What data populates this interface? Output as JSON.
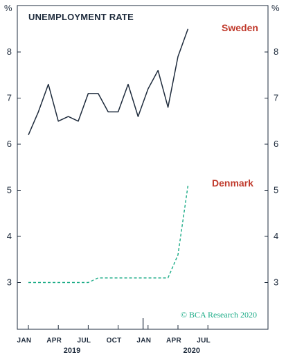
{
  "chart_data": {
    "type": "line",
    "title": "UNEMPLOYMENT RATE",
    "unit_left": "%",
    "unit_right": "%",
    "ylim": [
      2,
      9
    ],
    "yticks": [
      3,
      4,
      5,
      6,
      7,
      8
    ],
    "x_range": [
      0,
      20
    ],
    "xticks": [
      {
        "x": 0,
        "label": "JAN"
      },
      {
        "x": 3,
        "label": "APR"
      },
      {
        "x": 6,
        "label": "JUL"
      },
      {
        "x": 9,
        "label": "OCT"
      },
      {
        "x": 12,
        "label": "JAN"
      },
      {
        "x": 15,
        "label": "APR"
      },
      {
        "x": 18,
        "label": "JUL"
      }
    ],
    "year_labels": [
      {
        "x": 5,
        "label": "2019"
      },
      {
        "x": 17,
        "label": "2020"
      }
    ],
    "series": [
      {
        "name": "Sweden",
        "color": "#1e2b3c",
        "dash": false,
        "x": [
          0,
          1,
          2,
          3,
          4,
          5,
          6,
          7,
          8,
          9,
          10,
          11,
          12,
          13,
          14,
          15,
          16
        ],
        "values": [
          6.2,
          6.7,
          7.3,
          6.5,
          6.6,
          6.5,
          7.1,
          7.1,
          6.7,
          6.7,
          7.3,
          6.6,
          7.2,
          7.6,
          6.8,
          7.9,
          8.5
        ]
      },
      {
        "name": "Denmark",
        "color": "#1aab86",
        "dash": true,
        "x": [
          0,
          1,
          2,
          3,
          4,
          5,
          6,
          7,
          8,
          9,
          10,
          11,
          12,
          13,
          14,
          15,
          16
        ],
        "values": [
          3.0,
          3.0,
          3.0,
          3.0,
          3.0,
          3.0,
          3.0,
          3.1,
          3.1,
          3.1,
          3.1,
          3.1,
          3.1,
          3.1,
          3.1,
          3.6,
          5.1
        ]
      }
    ],
    "label_color": "#c0392b",
    "watermark": "© BCA Research 2020",
    "watermark_color": "#1aab86"
  }
}
